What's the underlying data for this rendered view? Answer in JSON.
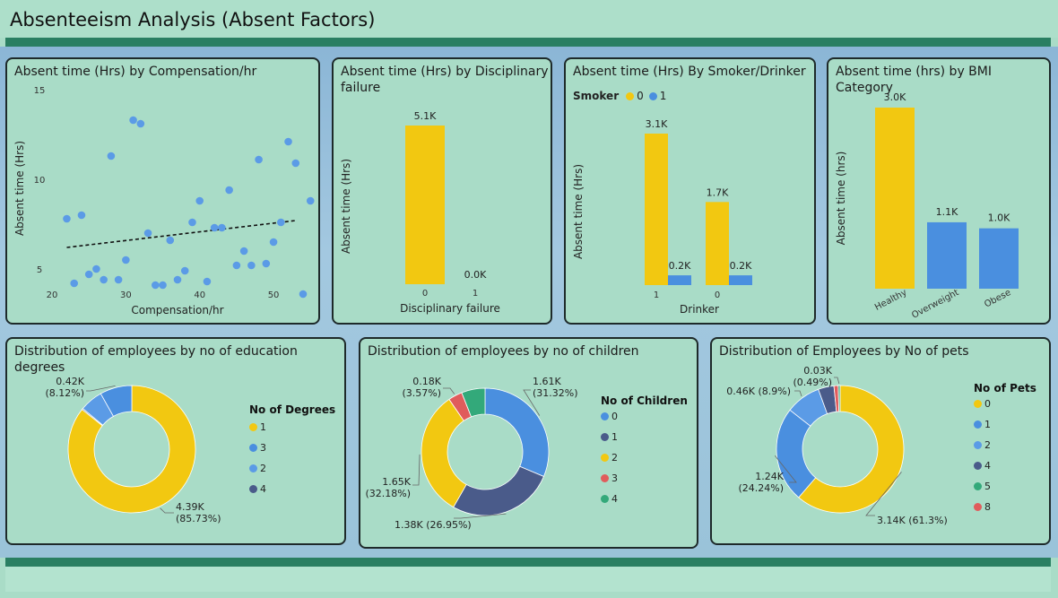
{
  "page": {
    "title": "Absenteeism Analysis (Absent Factors)"
  },
  "colors": {
    "yellow": "#f2c811",
    "blue": "#4a8fdf",
    "navy": "#4a5b8a",
    "red": "#e05c5c",
    "green": "#33a97a",
    "midblue": "#5b9be6"
  },
  "chart_data": [
    {
      "id": "comp",
      "type": "scatter",
      "title": "Absent time (Hrs) by Compensation/hr",
      "xlabel": "Compensation/hr",
      "ylabel": "Absent time (Hrs)",
      "xlim": [
        20,
        54
      ],
      "ylim": [
        4,
        15
      ],
      "xticks": [
        20,
        30,
        40,
        50
      ],
      "yticks": [
        5,
        10,
        15
      ],
      "trendline": {
        "x": [
          22,
          53
        ],
        "y": [
          6.2,
          7.7
        ]
      },
      "points": [
        {
          "x": 22,
          "y": 7.8
        },
        {
          "x": 23,
          "y": 4.2
        },
        {
          "x": 24,
          "y": 8.0
        },
        {
          "x": 25,
          "y": 4.7
        },
        {
          "x": 26,
          "y": 5.0
        },
        {
          "x": 27,
          "y": 4.4
        },
        {
          "x": 28,
          "y": 11.3
        },
        {
          "x": 29,
          "y": 4.4
        },
        {
          "x": 30,
          "y": 5.5
        },
        {
          "x": 31,
          "y": 13.3
        },
        {
          "x": 32,
          "y": 13.1
        },
        {
          "x": 33,
          "y": 7.0
        },
        {
          "x": 34,
          "y": 4.1
        },
        {
          "x": 35,
          "y": 4.1
        },
        {
          "x": 36,
          "y": 6.6
        },
        {
          "x": 37,
          "y": 4.4
        },
        {
          "x": 38,
          "y": 4.9
        },
        {
          "x": 39,
          "y": 7.6
        },
        {
          "x": 40,
          "y": 8.8
        },
        {
          "x": 41,
          "y": 4.3
        },
        {
          "x": 42,
          "y": 7.3
        },
        {
          "x": 43,
          "y": 7.3
        },
        {
          "x": 44,
          "y": 9.4
        },
        {
          "x": 45,
          "y": 5.2
        },
        {
          "x": 46,
          "y": 6.0
        },
        {
          "x": 47,
          "y": 5.2
        },
        {
          "x": 48,
          "y": 11.1
        },
        {
          "x": 49,
          "y": 5.3
        },
        {
          "x": 50,
          "y": 6.5
        },
        {
          "x": 51,
          "y": 7.6
        },
        {
          "x": 52,
          "y": 12.1
        },
        {
          "x": 53,
          "y": 10.9
        },
        {
          "x": 54,
          "y": 3.6
        },
        {
          "x": 55,
          "y": 8.8
        }
      ]
    },
    {
      "id": "disc",
      "type": "bar",
      "title": "Absent time (Hrs) by Disciplinary failure",
      "xlabel": "Disciplinary failure",
      "ylabel": "Absent time (Hrs)",
      "categories": [
        "0",
        "1"
      ],
      "values": [
        5.1,
        0.0
      ],
      "labels": [
        "5.1K",
        "0.0K"
      ],
      "ylim": [
        0,
        5.1
      ]
    },
    {
      "id": "smoke",
      "type": "bar",
      "title": "Absent time (Hrs) By Smoker/Drinker",
      "xlabel": "Drinker",
      "ylabel": "Absent time (Hrs)",
      "legend_title": "Smoker",
      "categories": [
        "1",
        "0"
      ],
      "series": [
        {
          "name": "0",
          "values": [
            3.1,
            1.7
          ],
          "labels": [
            "3.1K",
            "1.7K"
          ]
        },
        {
          "name": "1",
          "values": [
            0.2,
            0.2
          ],
          "labels": [
            "0.2K",
            "0.2K"
          ]
        }
      ],
      "ylim": [
        0,
        3.1
      ]
    },
    {
      "id": "bmi",
      "type": "bar",
      "title": "Absent time (hrs) by BMI Category",
      "xlabel": "",
      "ylabel": "Absent time (hrs)",
      "categories": [
        "Healthy",
        "Overweight",
        "Obese"
      ],
      "values": [
        3.0,
        1.1,
        1.0
      ],
      "labels": [
        "3.0K",
        "1.1K",
        "1.0K"
      ],
      "ylim": [
        0,
        3.0
      ]
    },
    {
      "id": "edu",
      "type": "pie",
      "title": "Distribution of employees by no of education degrees",
      "legend_title": "No of Degrees",
      "legend": [
        "1",
        "3",
        "2",
        "4"
      ],
      "slices": [
        {
          "name": "1",
          "value": 85.73,
          "label": "4.39K",
          "pct": "(85.73%)"
        },
        {
          "name": "3",
          "value": 8.12,
          "label": "0.42K",
          "pct": "(8.12%)"
        },
        {
          "name": "2",
          "value": 5.85
        },
        {
          "name": "4",
          "value": 0.3
        }
      ]
    },
    {
      "id": "child",
      "type": "pie",
      "title": "Distribution of employees by no of children",
      "legend_title": "No of Children",
      "legend": [
        "0",
        "1",
        "2",
        "3",
        "4"
      ],
      "slices": [
        {
          "name": "0",
          "value": 31.32,
          "label": "1.61K",
          "pct": "(31.32%)"
        },
        {
          "name": "1",
          "value": 26.95,
          "label": "1.38K (26.95%)"
        },
        {
          "name": "2",
          "value": 32.18,
          "label": "1.65K",
          "pct": "(32.18%)"
        },
        {
          "name": "3",
          "value": 3.57,
          "label": "0.18K",
          "pct": "(3.57%)"
        },
        {
          "name": "4",
          "value": 5.98
        }
      ]
    },
    {
      "id": "pets",
      "type": "pie",
      "title": "Distribution of Employees by No of pets",
      "legend_title": "No of Pets",
      "legend": [
        "0",
        "1",
        "2",
        "4",
        "5",
        "8"
      ],
      "slices": [
        {
          "name": "0",
          "value": 61.3,
          "label": "3.14K (61.3%)"
        },
        {
          "name": "1",
          "value": 24.24,
          "label": "1.24K",
          "pct": "(24.24%)"
        },
        {
          "name": "2",
          "value": 8.9,
          "label": "0.46K (8.9%)"
        },
        {
          "name": "4",
          "value": 4.0
        },
        {
          "name": "5",
          "value": 0.49,
          "label": "0.03K",
          "pct": "(0.49%)"
        },
        {
          "name": "8",
          "value": 1.07
        }
      ]
    }
  ]
}
